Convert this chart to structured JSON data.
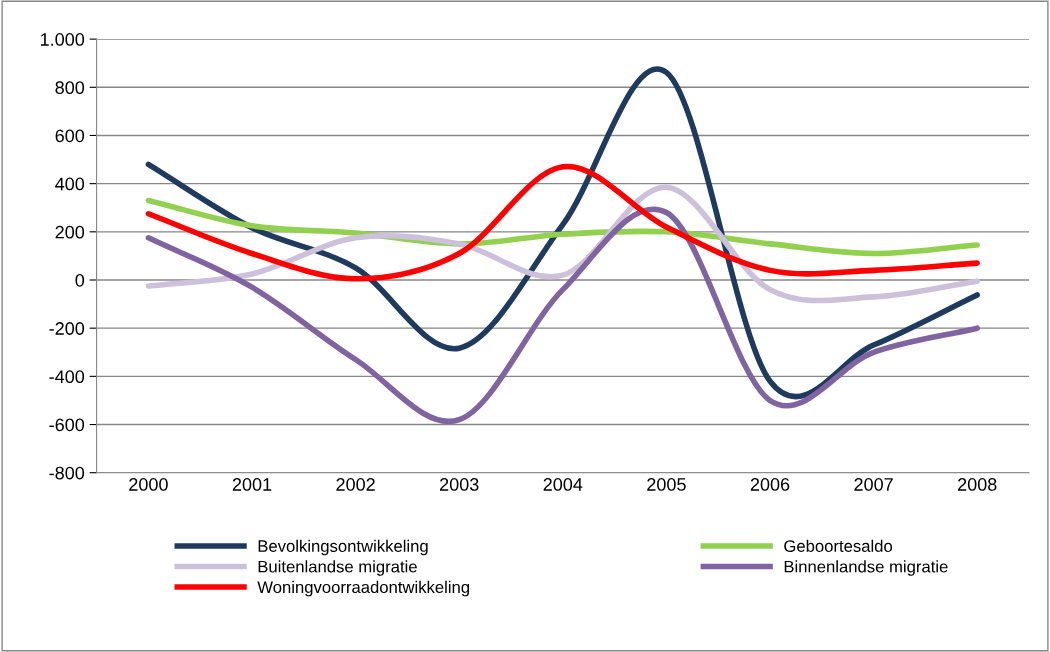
{
  "chart_data": {
    "type": "line",
    "categories": [
      "2000",
      "2001",
      "2002",
      "2003",
      "2004",
      "2005",
      "2006",
      "2007",
      "2008"
    ],
    "ylim": [
      -800,
      1000
    ],
    "yticks": [
      {
        "value": -800,
        "label": "-800"
      },
      {
        "value": -600,
        "label": "-600"
      },
      {
        "value": -400,
        "label": "-400"
      },
      {
        "value": -200,
        "label": "-200"
      },
      0,
      200,
      400,
      600,
      800,
      {
        "value": 1000,
        "label": "1.000"
      }
    ],
    "grid": "y",
    "legend": "bottom",
    "marker": "none",
    "series": [
      {
        "name": "Bevolkingsontwikkeling",
        "color": "#1f3a5f",
        "values": [
          480,
          217,
          50,
          -283,
          230,
          862,
          -420,
          -270,
          -62
        ]
      },
      {
        "name": "Geboortesaldo",
        "color": "#92d050",
        "values": [
          330,
          225,
          195,
          150,
          190,
          200,
          150,
          110,
          145
        ]
      },
      {
        "name": "Buitenlandse migratie",
        "color": "#ccc0da",
        "values": [
          -25,
          25,
          175,
          150,
          20,
          385,
          -40,
          -70,
          -5
        ]
      },
      {
        "name": "Binnenlandse migratie",
        "color": "#8064a2",
        "values": [
          175,
          -30,
          -330,
          -580,
          -40,
          280,
          -500,
          -300,
          -200
        ]
      },
      {
        "name": "Woningvoorraadontwikkeling",
        "color": "#ff0000",
        "values": [
          275,
          110,
          5,
          110,
          470,
          220,
          40,
          40,
          70
        ]
      }
    ]
  }
}
